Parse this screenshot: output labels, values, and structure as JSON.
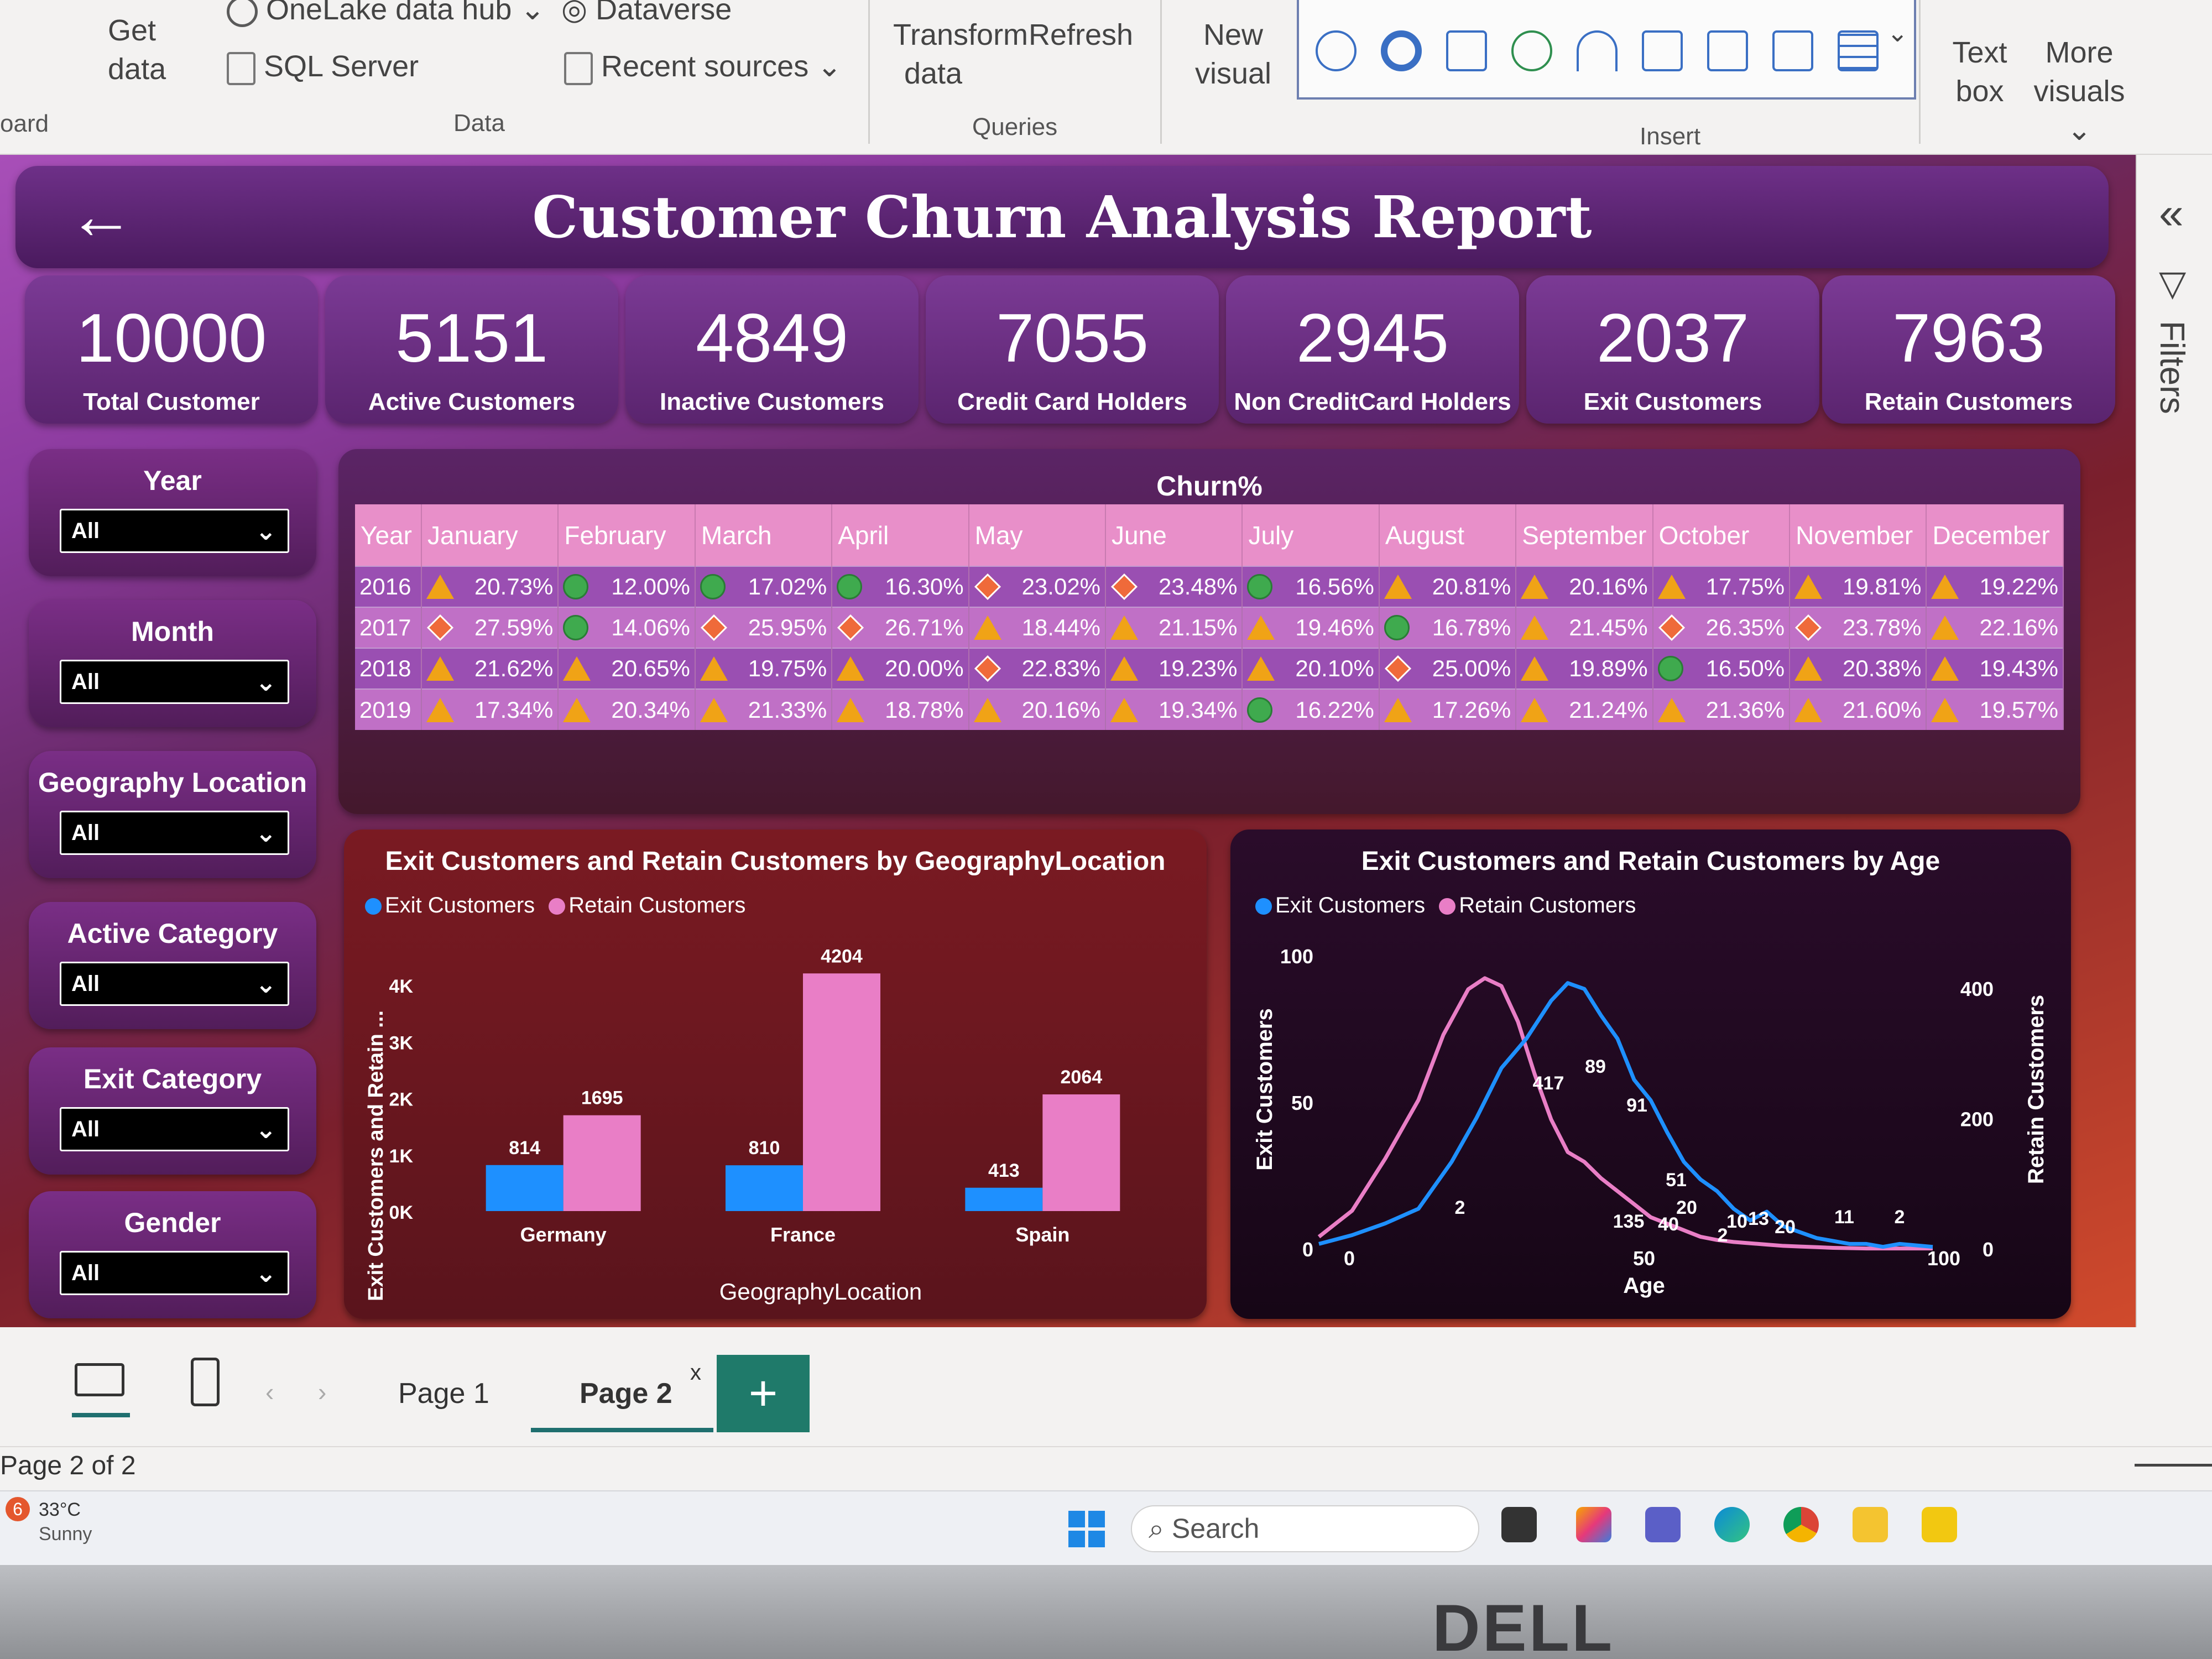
{
  "ribbon": {
    "clipboard_group": "oard",
    "get_data": "Get data",
    "onelake": "OneLake data hub",
    "dataverse": "Dataverse",
    "sql_server": "SQL Server",
    "recent_sources": "Recent sources",
    "data_group": "Data",
    "transform": "Transform data",
    "refresh": "Refresh",
    "queries_group": "Queries",
    "new_visual": "New visual",
    "insert_group": "Insert",
    "text_box": "Text box",
    "more_visuals": "More visuals"
  },
  "filters_pane": {
    "label": "Filters"
  },
  "report": {
    "title": "Customer Churn Analysis Report",
    "kpis": [
      {
        "value": "10000",
        "label": "Total Customer"
      },
      {
        "value": "5151",
        "label": "Active Customers"
      },
      {
        "value": "4849",
        "label": "Inactive Customers"
      },
      {
        "value": "7055",
        "label": "Credit Card Holders"
      },
      {
        "value": "2945",
        "label": "Non CreditCard Holders"
      },
      {
        "value": "2037",
        "label": "Exit Customers"
      },
      {
        "value": "7963",
        "label": "Retain Customers"
      }
    ],
    "slicers": [
      {
        "title": "Year",
        "value": "All"
      },
      {
        "title": "Month",
        "value": "All"
      },
      {
        "title": "Geography Location",
        "value": "All"
      },
      {
        "title": "Active Category",
        "value": "All"
      },
      {
        "title": "Exit Category",
        "value": "All"
      },
      {
        "title": "Gender",
        "value": "All"
      }
    ]
  },
  "churn_matrix": {
    "title": "Churn%",
    "columns": [
      "Year",
      "January",
      "February",
      "March",
      "April",
      "May",
      "June",
      "July",
      "August",
      "September",
      "October",
      "November",
      "December"
    ],
    "rows": [
      {
        "year": "2016",
        "cells": [
          [
            "tri",
            "20.73%"
          ],
          [
            "circ",
            "12.00%"
          ],
          [
            "circ",
            "17.02%"
          ],
          [
            "circ",
            "16.30%"
          ],
          [
            "diam",
            "23.02%"
          ],
          [
            "diam",
            "23.48%"
          ],
          [
            "circ",
            "16.56%"
          ],
          [
            "tri",
            "20.81%"
          ],
          [
            "tri",
            "20.16%"
          ],
          [
            "tri",
            "17.75%"
          ],
          [
            "tri",
            "19.81%"
          ],
          [
            "tri",
            "19.22%"
          ]
        ]
      },
      {
        "year": "2017",
        "cells": [
          [
            "diam",
            "27.59%"
          ],
          [
            "circ",
            "14.06%"
          ],
          [
            "diam",
            "25.95%"
          ],
          [
            "diam",
            "26.71%"
          ],
          [
            "tri",
            "18.44%"
          ],
          [
            "tri",
            "21.15%"
          ],
          [
            "tri",
            "19.46%"
          ],
          [
            "circ",
            "16.78%"
          ],
          [
            "tri",
            "21.45%"
          ],
          [
            "diam",
            "26.35%"
          ],
          [
            "diam",
            "23.78%"
          ],
          [
            "tri",
            "22.16%"
          ]
        ]
      },
      {
        "year": "2018",
        "cells": [
          [
            "tri",
            "21.62%"
          ],
          [
            "tri",
            "20.65%"
          ],
          [
            "tri",
            "19.75%"
          ],
          [
            "tri",
            "20.00%"
          ],
          [
            "diam",
            "22.83%"
          ],
          [
            "tri",
            "19.23%"
          ],
          [
            "tri",
            "20.10%"
          ],
          [
            "diam",
            "25.00%"
          ],
          [
            "tri",
            "19.89%"
          ],
          [
            "circ",
            "16.50%"
          ],
          [
            "tri",
            "20.38%"
          ],
          [
            "tri",
            "19.43%"
          ]
        ]
      },
      {
        "year": "2019",
        "cells": [
          [
            "tri",
            "17.34%"
          ],
          [
            "tri",
            "20.34%"
          ],
          [
            "tri",
            "21.33%"
          ],
          [
            "tri",
            "18.78%"
          ],
          [
            "tri",
            "20.16%"
          ],
          [
            "tri",
            "19.34%"
          ],
          [
            "circ",
            "16.22%"
          ],
          [
            "tri",
            "17.26%"
          ],
          [
            "tri",
            "21.24%"
          ],
          [
            "tri",
            "21.36%"
          ],
          [
            "tri",
            "21.60%"
          ],
          [
            "tri",
            "19.57%"
          ]
        ]
      }
    ]
  },
  "chart_data": [
    {
      "type": "bar",
      "title": "Exit Customers and Retain Customers by GeographyLocation",
      "xlabel": "GeographyLocation",
      "ylabel": "Exit Customers and Retain ...",
      "categories": [
        "Germany",
        "France",
        "Spain"
      ],
      "series": [
        {
          "name": "Exit Customers",
          "values": [
            814,
            810,
            413
          ],
          "color": "#1e90ff"
        },
        {
          "name": "Retain Customers",
          "values": [
            1695,
            4204,
            2064
          ],
          "color": "#e97ec6"
        }
      ],
      "ylim": [
        0,
        4500
      ],
      "yticks": [
        "0K",
        "1K",
        "2K",
        "3K",
        "4K"
      ],
      "legend": "top-left"
    },
    {
      "type": "line",
      "title": "Exit Customers and Retain Customers by Age",
      "xlabel": "Age",
      "ylabel_left": "Exit Customers",
      "ylabel_right": "Retain Customers",
      "xlim": [
        18,
        92
      ],
      "x_ticks_left": [
        "0",
        "50"
      ],
      "x_ticks_right": [
        "100"
      ],
      "yticks_left": [
        "0",
        "50",
        "100"
      ],
      "yticks_right": [
        "0",
        "200",
        "400"
      ],
      "series": [
        {
          "name": "Exit Customers",
          "axis": "left",
          "color": "#1e90ff",
          "x": [
            18,
            22,
            26,
            30,
            34,
            37,
            40,
            43,
            46,
            48,
            50,
            52,
            54,
            56,
            58,
            60,
            62,
            64,
            66,
            68,
            70,
            72,
            74,
            76,
            78,
            80,
            82,
            84,
            86,
            88,
            92
          ],
          "y": [
            2,
            5,
            9,
            14,
            30,
            45,
            62,
            72,
            85,
            91,
            89,
            80,
            72,
            58,
            51,
            40,
            30,
            24,
            20,
            14,
            10,
            13,
            8,
            6,
            4,
            3,
            2,
            2,
            1,
            2,
            1
          ]
        },
        {
          "name": "Retain Customers",
          "axis": "right",
          "color": "#e97ec6",
          "x": [
            18,
            22,
            26,
            30,
            33,
            36,
            38,
            40,
            42,
            44,
            46,
            48,
            50,
            52,
            54,
            56,
            58,
            60,
            62,
            64,
            66,
            68,
            70,
            72,
            74,
            76,
            78,
            80,
            84,
            88,
            92
          ],
          "y": [
            20,
            60,
            140,
            230,
            330,
            400,
            417,
            405,
            350,
            270,
            200,
            150,
            135,
            110,
            90,
            70,
            50,
            40,
            30,
            20,
            15,
            12,
            10,
            8,
            6,
            5,
            4,
            3,
            2,
            2,
            2
          ]
        }
      ],
      "annotations": [
        "417",
        "89",
        "91",
        "51",
        "135",
        "40",
        "2",
        "20",
        "10",
        "2",
        "13",
        "20",
        "11",
        "2"
      ],
      "legend": "top-left"
    }
  ],
  "pages": {
    "tabs": [
      "Page 1",
      "Page 2"
    ],
    "active": "Page 2",
    "status": "Page 2 of 2"
  },
  "taskbar": {
    "search_placeholder": "Search",
    "weather_temp": "33°C",
    "weather_desc": "Sunny",
    "weather_badge": "6"
  },
  "monitor_brand": "DELL"
}
